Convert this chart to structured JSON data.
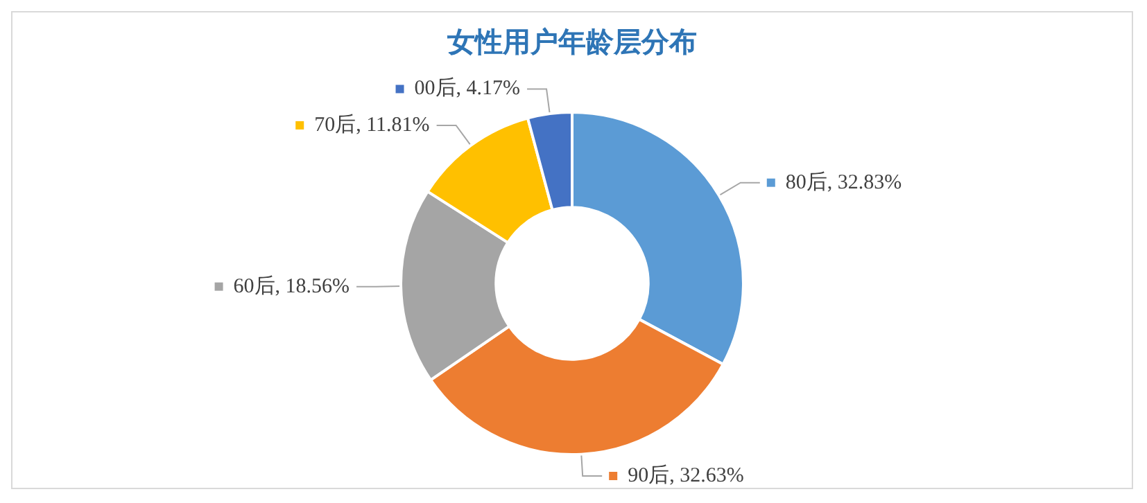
{
  "chart_data": {
    "type": "donut",
    "title": "女性用户年龄层分布",
    "categories": [
      "80后",
      "90后",
      "60后",
      "70后",
      "00后"
    ],
    "values": [
      32.83,
      32.63,
      18.56,
      11.81,
      4.17
    ],
    "value_labels": [
      ", 32.83%",
      ", 32.63%",
      ", 18.56%",
      ", 11.81%",
      ", 4.17%"
    ],
    "colors": [
      "#5b9bd5",
      "#ed7d31",
      "#a5a5a5",
      "#ffc000",
      "#4472c4"
    ],
    "legend": true
  }
}
